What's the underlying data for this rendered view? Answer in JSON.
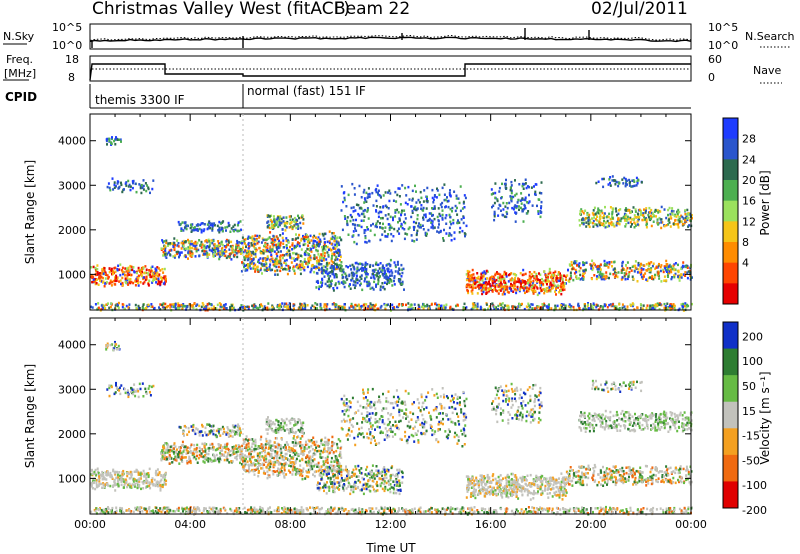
{
  "header": {
    "station": "Christmas Valley West (fitACF)",
    "beam": "Beam 22",
    "date": "02/Jul/2011"
  },
  "top_labels": {
    "nsky": "N.Sky",
    "nsearch": "N.Search",
    "freq_line1": "Freq.",
    "freq_line2": "[MHz]",
    "nave": "Nave",
    "cpid": "CPID",
    "tick_1e5_left": "10^5",
    "tick_1e0_left": "10^0",
    "tick_1e5_right": "10^5",
    "tick_1e0_right": "10^0",
    "freq_18": "18",
    "freq_8": "8",
    "nave_60": "60",
    "nave_0": "0",
    "mode1": "themis 3300 IF",
    "mode2": "normal (fast) 151 IF"
  },
  "colors": {
    "power": [
      "#1e3cff",
      "#2a55cc",
      "#2d6a4f",
      "#4caf50",
      "#9be15d",
      "#f5c518",
      "#ff8c00",
      "#ff4500",
      "#e60000"
    ],
    "velocity": [
      "#1030c8",
      "#2e7d32",
      "#66bb44",
      "#c2c2bc",
      "#f4a020",
      "#f06a10",
      "#e00000"
    ]
  },
  "chart_data": [
    {
      "type": "heatmap",
      "name": "power-panel",
      "ylabel": "Slant Range [km]",
      "xlabel": "",
      "x_ticks": [
        "00:00",
        "04:00",
        "08:00",
        "12:00",
        "16:00",
        "20:00",
        "00:00"
      ],
      "y_ticks": [
        1000,
        2000,
        3000,
        4000
      ],
      "ylim": [
        200,
        4600
      ],
      "xlim_hours": [
        0,
        24
      ],
      "colorbar_label": "Power [dB]",
      "colorbar_ticks": [
        4,
        8,
        12,
        16,
        20,
        24,
        28
      ]
    },
    {
      "type": "heatmap",
      "name": "velocity-panel",
      "ylabel": "Slant Range [km]",
      "xlabel": "Time UT",
      "x_ticks": [
        "00:00",
        "04:00",
        "08:00",
        "12:00",
        "16:00",
        "20:00",
        "00:00"
      ],
      "y_ticks": [
        1000,
        2000,
        3000,
        4000
      ],
      "ylim": [
        200,
        4600
      ],
      "xlim_hours": [
        0,
        24
      ],
      "colorbar_label": "Velocity [m s⁻¹]",
      "colorbar_ticks": [
        200,
        100,
        50,
        15,
        -15,
        -50,
        -100,
        -200
      ]
    }
  ]
}
